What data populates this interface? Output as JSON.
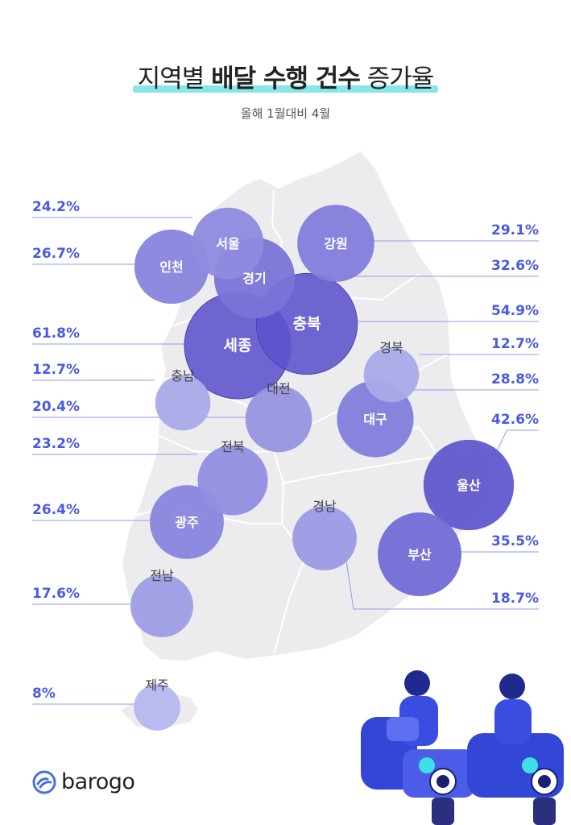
{
  "title": {
    "normal_1": "지역별 ",
    "bold": "배달 수행 건수",
    "normal_2": " 증가율"
  },
  "subtitle": "올해 1월대비 4월",
  "brand": {
    "name": "barogo"
  },
  "colors": {
    "accent": "#4a5be0",
    "bubble_dark": "#5a50cc",
    "bubble_light": "#c9cdf5",
    "map": "#ececee",
    "underline": "#86e6e8"
  },
  "chart_data": {
    "type": "bubble-map",
    "title": "지역별 배달 수행 건수 증가율",
    "subtitle": "올해 1월대비 4월",
    "unit": "%",
    "regions": [
      {
        "name": "서울",
        "value": 24.2,
        "label": "24.2%"
      },
      {
        "name": "인천",
        "value": 26.7,
        "label": "26.7%"
      },
      {
        "name": "강원",
        "value": 29.1,
        "label": "29.1%"
      },
      {
        "name": "경기",
        "value": 32.6,
        "label": "32.6%"
      },
      {
        "name": "충북",
        "value": 54.9,
        "label": "54.9%"
      },
      {
        "name": "세종",
        "value": 61.8,
        "label": "61.8%"
      },
      {
        "name": "경북",
        "value": 12.7,
        "label": "12.7%"
      },
      {
        "name": "충남",
        "value": 12.7,
        "label": "12.7%"
      },
      {
        "name": "대전",
        "value": 20.4,
        "label": "20.4%"
      },
      {
        "name": "대구",
        "value": 28.8,
        "label": "28.8%"
      },
      {
        "name": "전북",
        "value": 23.2,
        "label": "23.2%"
      },
      {
        "name": "울산",
        "value": 42.6,
        "label": "42.6%"
      },
      {
        "name": "광주",
        "value": 26.4,
        "label": "26.4%"
      },
      {
        "name": "경남",
        "value": 18.7,
        "label": "18.7%"
      },
      {
        "name": "부산",
        "value": 35.5,
        "label": "35.5%"
      },
      {
        "name": "전남",
        "value": 17.6,
        "label": "17.6%"
      },
      {
        "name": "제주",
        "value": 8,
        "label": "8%"
      }
    ]
  }
}
